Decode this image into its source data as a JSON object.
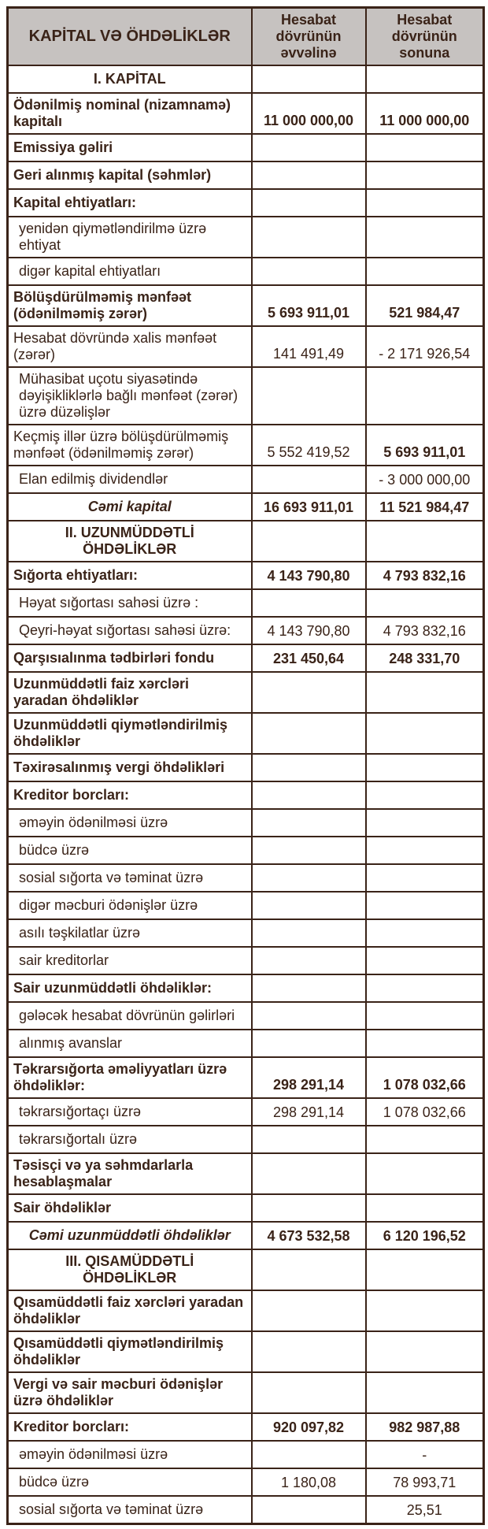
{
  "table": {
    "header": {
      "label_col": "KAPİTAL VƏ ÖHDƏLİKLƏR",
      "period_start_col": "Hesabat dövrünün əvvəlinə",
      "period_end_col": "Hesabat dövrünün sonuna"
    },
    "rows": [
      {
        "label": "I. KAPİTAL",
        "type": "section",
        "v1": "",
        "v2": ""
      },
      {
        "label": "Ödənilmiş nominal (nizamnamə) kapitalı",
        "type": "cat",
        "v1": "11 000 000,00",
        "v2": "11 000 000,00",
        "b1": true,
        "b2": true
      },
      {
        "label": "Emissiya gəliri",
        "type": "cat",
        "v1": "",
        "v2": ""
      },
      {
        "label": "Geri alınmış kapital (səhmlər)",
        "type": "cat",
        "v1": "",
        "v2": ""
      },
      {
        "label": "Kapital ehtiyatları:",
        "type": "cat",
        "v1": "",
        "v2": ""
      },
      {
        "label": "yenidən qiymətləndirilmə üzrə ehtiyat",
        "type": "sub",
        "v1": "",
        "v2": ""
      },
      {
        "label": "digər kapital ehtiyatları",
        "type": "sub",
        "v1": "",
        "v2": ""
      },
      {
        "label": "Bölüşdürülməmiş mənfəət (ödənilməmiş zərər)",
        "type": "cat",
        "v1": "5 693 911,01",
        "v2": "521 984,47",
        "b1": true,
        "b2": true
      },
      {
        "label": "Hesabat dövründə xalis mənfəət (zərər)",
        "type": "plain",
        "v1": "141 491,49",
        "v2": "- 2 171 926,54"
      },
      {
        "label": "Mühasibat uçotu siyasətində dəyişikliklərlə bağlı mənfəət (zərər) üzrə düzəlişlər",
        "type": "sub",
        "v1": "",
        "v2": ""
      },
      {
        "label": "Keçmiş illər üzrə bölüşdürülməmiş mənfəət (ödənilməmiş zərər)",
        "type": "plain",
        "v1": "5 552 419,52",
        "v2": "5 693 911,01",
        "b2": true
      },
      {
        "label": "Elan edilmiş dividendlər",
        "type": "sub",
        "v1": "",
        "v2": "- 3 000 000,00"
      },
      {
        "label": "Cəmi kapital",
        "type": "total",
        "v1": "16 693 911,01",
        "v2": "11 521 984,47",
        "b1": true,
        "b2": true
      },
      {
        "label": "II. UZUNMÜDDƏTLİ ÖHDƏLİKLƏR",
        "type": "section",
        "v1": "",
        "v2": ""
      },
      {
        "label": "Sığorta ehtiyatları:",
        "type": "cat",
        "v1": "4 143 790,80",
        "v2": "4 793 832,16",
        "b1": true,
        "b2": true
      },
      {
        "label": "Həyat sığortası sahəsi üzrə :",
        "type": "sub",
        "v1": "",
        "v2": ""
      },
      {
        "label": "Qeyri-həyat sığortası sahəsi üzrə:",
        "type": "sub",
        "v1": "4 143 790,80",
        "v2": "4 793 832,16"
      },
      {
        "label": "Qarşısıalınma tədbirləri fondu",
        "type": "cat",
        "v1": "231 450,64",
        "v2": "248 331,70",
        "b1": true,
        "b2": true
      },
      {
        "label": "Uzunmüddətli faiz xərcləri yaradan öhdəliklər",
        "type": "cat",
        "v1": "",
        "v2": ""
      },
      {
        "label": "Uzunmüddətli qiymətləndirilmiş öhdəliklər",
        "type": "cat",
        "v1": "",
        "v2": ""
      },
      {
        "label": "Təxirəsalınmış vergi öhdəlikləri",
        "type": "cat",
        "v1": "",
        "v2": ""
      },
      {
        "label": "Kreditor borcları:",
        "type": "cat",
        "v1": "",
        "v2": ""
      },
      {
        "label": "əməyin ödənilməsi üzrə",
        "type": "sub",
        "v1": "",
        "v2": ""
      },
      {
        "label": "büdcə üzrə",
        "type": "sub",
        "v1": "",
        "v2": ""
      },
      {
        "label": "sosial sığorta və təminat üzrə",
        "type": "sub",
        "v1": "",
        "v2": ""
      },
      {
        "label": "digər məcburi ödənişlər üzrə",
        "type": "sub",
        "v1": "",
        "v2": ""
      },
      {
        "label": "asılı təşkilatlar üzrə",
        "type": "sub",
        "v1": "",
        "v2": ""
      },
      {
        "label": "sair kreditorlar",
        "type": "sub",
        "v1": "",
        "v2": ""
      },
      {
        "label": "Sair uzunmüddətli öhdəliklər:",
        "type": "cat",
        "v1": "",
        "v2": ""
      },
      {
        "label": "gələcək hesabat dövrünün gəlirləri",
        "type": "sub",
        "v1": "",
        "v2": ""
      },
      {
        "label": "alınmış avanslar",
        "type": "sub",
        "v1": "",
        "v2": ""
      },
      {
        "label": "Təkrarsığorta əməliyyatları üzrə öhdəliklər:",
        "type": "cat",
        "v1": "298 291,14",
        "v2": "1 078 032,66",
        "b1": true,
        "b2": true
      },
      {
        "label": "təkrarsığortaçı üzrə",
        "type": "sub",
        "v1": "298 291,14",
        "v2": "1 078 032,66"
      },
      {
        "label": "təkrarsığortalı üzrə",
        "type": "sub",
        "v1": "",
        "v2": ""
      },
      {
        "label": "Təsisçi və ya səhmdarlarla hesablaşmalar",
        "type": "cat",
        "v1": "",
        "v2": ""
      },
      {
        "label": "Sair öhdəliklər",
        "type": "cat",
        "v1": "",
        "v2": ""
      },
      {
        "label": "Cəmi uzunmüddətli öhdəliklər",
        "type": "total",
        "v1": "4 673 532,58",
        "v2": "6 120 196,52",
        "b1": true,
        "b2": true
      },
      {
        "label": "III. QISAMÜDDƏTLİ ÖHDƏLİKLƏR",
        "type": "section",
        "v1": "",
        "v2": ""
      },
      {
        "label": "Qısamüddətli faiz xərcləri yaradan öhdəliklər",
        "type": "cat",
        "v1": "",
        "v2": ""
      },
      {
        "label": "Qısamüddətli qiymətləndirilmiş öhdəliklər",
        "type": "cat",
        "v1": "",
        "v2": ""
      },
      {
        "label": "Vergi və sair məcburi ödənişlər üzrə öhdəliklər",
        "type": "cat",
        "v1": "",
        "v2": ""
      },
      {
        "label": "Kreditor borcları:",
        "type": "cat",
        "v1": "920 097,82",
        "v2": "982 987,88",
        "b1": true,
        "b2": true
      },
      {
        "label": "əməyin ödənilməsi üzrə",
        "type": "sub",
        "v1": "",
        "v2": "-"
      },
      {
        "label": "büdcə üzrə",
        "type": "sub",
        "v1": "1 180,08",
        "v2": "78 993,71"
      },
      {
        "label": "sosial sığorta və təminat üzrə",
        "type": "sub",
        "v1": "",
        "v2": "25,51"
      }
    ],
    "colors": {
      "text": "#3a2318",
      "border": "#3a2318",
      "header_bg": "#c6c2c0"
    }
  }
}
